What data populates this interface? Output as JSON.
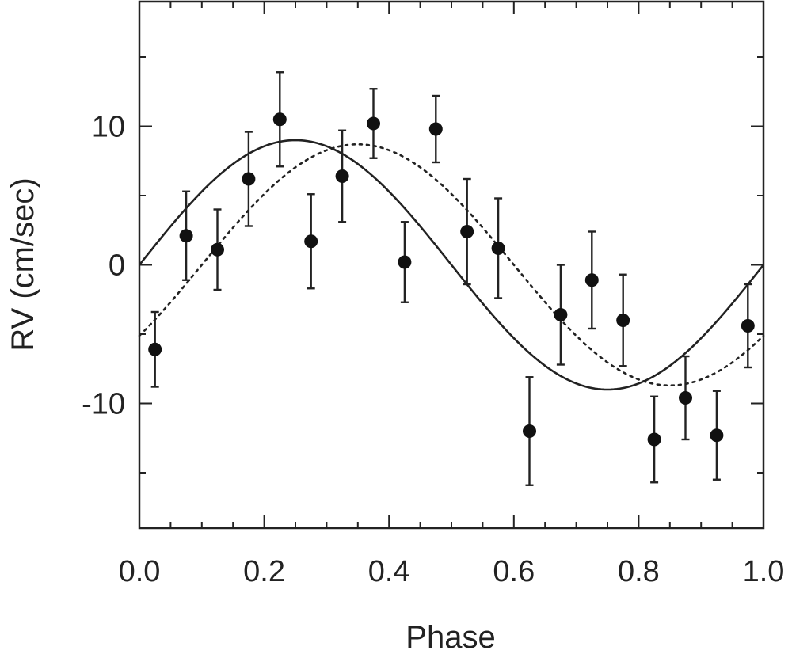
{
  "chart_data": {
    "type": "scatter",
    "title": "",
    "xlabel": "Phase",
    "ylabel": "RV (cm/sec)",
    "xlim": [
      0.0,
      1.0
    ],
    "ylim": [
      -19,
      19
    ],
    "x_ticks": [
      {
        "value": 0.0,
        "label": "0.0"
      },
      {
        "value": 0.2,
        "label": "0.2"
      },
      {
        "value": 0.4,
        "label": "0.4"
      },
      {
        "value": 0.6,
        "label": "0.6"
      },
      {
        "value": 0.8,
        "label": "0.8"
      },
      {
        "value": 1.0,
        "label": "1.0"
      }
    ],
    "y_ticks": [
      {
        "value": 10,
        "label": "10"
      },
      {
        "value": 0,
        "label": "0"
      },
      {
        "value": -10,
        "label": "-10"
      }
    ],
    "x_minor_step": 0.05,
    "y_minor_step": 5,
    "grid": false,
    "series": [
      {
        "name": "data",
        "style": "points-with-errorbars",
        "points": [
          {
            "x": 0.025,
            "y": -6.1,
            "err": 2.7
          },
          {
            "x": 0.075,
            "y": 2.1,
            "err": 3.2
          },
          {
            "x": 0.125,
            "y": 1.1,
            "err": 2.9
          },
          {
            "x": 0.175,
            "y": 6.2,
            "err": 3.4
          },
          {
            "x": 0.225,
            "y": 10.5,
            "err": 3.4
          },
          {
            "x": 0.275,
            "y": 1.7,
            "err": 3.4
          },
          {
            "x": 0.325,
            "y": 6.4,
            "err": 3.3
          },
          {
            "x": 0.375,
            "y": 10.2,
            "err": 2.5
          },
          {
            "x": 0.425,
            "y": 0.2,
            "err": 2.9
          },
          {
            "x": 0.475,
            "y": 9.8,
            "err": 2.4
          },
          {
            "x": 0.525,
            "y": 2.4,
            "err": 3.8
          },
          {
            "x": 0.575,
            "y": 1.2,
            "err": 3.6
          },
          {
            "x": 0.625,
            "y": -12.0,
            "err": 3.9
          },
          {
            "x": 0.675,
            "y": -3.6,
            "err": 3.6
          },
          {
            "x": 0.725,
            "y": -1.1,
            "err": 3.5
          },
          {
            "x": 0.775,
            "y": -4.0,
            "err": 3.3
          },
          {
            "x": 0.825,
            "y": -12.6,
            "err": 3.1
          },
          {
            "x": 0.875,
            "y": -9.6,
            "err": 3.0
          },
          {
            "x": 0.925,
            "y": -12.3,
            "err": 3.2
          },
          {
            "x": 0.975,
            "y": -4.4,
            "err": 3.0
          }
        ]
      },
      {
        "name": "solid-fit",
        "style": "solid-line",
        "model": "sine",
        "amplitude": 9.0,
        "phase_offset": 0.0
      },
      {
        "name": "dotted-fit",
        "style": "dotted-line",
        "model": "sine",
        "amplitude": 8.7,
        "phase_offset": 0.1
      }
    ]
  }
}
